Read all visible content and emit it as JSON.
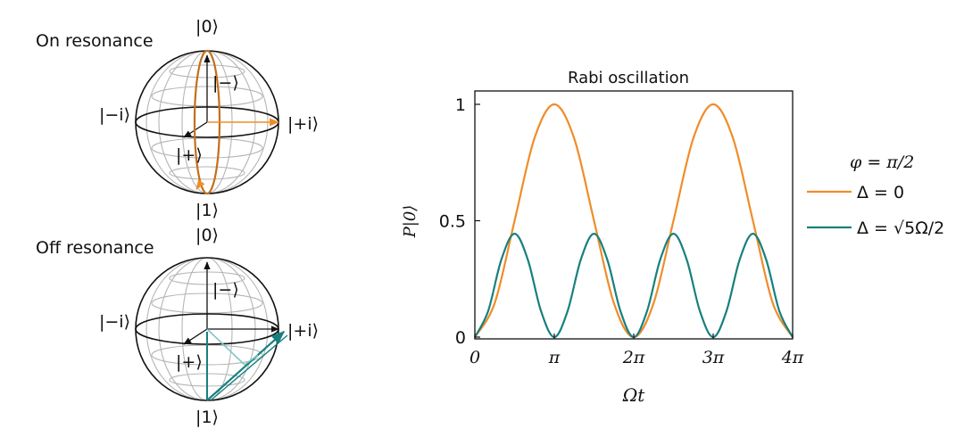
{
  "colors": {
    "on": "#ef8d2a",
    "off": "#17807e",
    "off_light": "#7cc8c6",
    "grid": "#b5b5b5",
    "axis": "#111111"
  },
  "spheres": [
    {
      "title": "On resonance",
      "title_color": "#ef8d2a",
      "kets": {
        "top": "|0⟩",
        "bottom": "|1⟩",
        "left": "|−i⟩",
        "right": "|+i⟩",
        "minus": "|−⟩",
        "plus": "|+⟩"
      }
    },
    {
      "title": "Off resonance",
      "title_color": "#17807e",
      "kets": {
        "top": "|0⟩",
        "bottom": "|1⟩",
        "left": "|−i⟩",
        "right": "|+i⟩",
        "minus": "|−⟩",
        "plus": "|+⟩"
      }
    }
  ],
  "chart_data": {
    "type": "line",
    "title": "Rabi oscillation",
    "xlabel": "Ωt",
    "ylabel": "P|0⟩",
    "xlim": [
      0,
      12.566
    ],
    "ylim": [
      0,
      1
    ],
    "xticks": [
      0,
      3.1416,
      6.2832,
      9.4248,
      12.566
    ],
    "xtick_labels": [
      "0",
      "π",
      "2π",
      "3π",
      "4π"
    ],
    "yticks": [
      0,
      0.5,
      1
    ],
    "ytick_labels": [
      "0",
      "0.5",
      "1"
    ],
    "legend_title": "φ = π/2",
    "legend_position": "right",
    "series": [
      {
        "name": "Δ = 0",
        "color": "#ef8d2a",
        "x": [
          0,
          0.785,
          1.571,
          2.356,
          3.142,
          3.927,
          4.712,
          5.498,
          6.283,
          7.069,
          7.854,
          8.639,
          9.425,
          10.21,
          10.996,
          11.781,
          12.566
        ],
        "y": [
          0,
          0.146,
          0.5,
          0.854,
          1,
          0.854,
          0.5,
          0.146,
          0,
          0.146,
          0.5,
          0.854,
          1,
          0.854,
          0.5,
          0.146,
          0
        ]
      },
      {
        "name": "Δ = √5Ω/2",
        "color": "#17807e",
        "x": [
          0,
          0.524,
          1.047,
          1.571,
          2.094,
          2.618,
          3.142,
          3.665,
          4.189,
          4.712,
          5.236,
          5.76,
          6.283,
          6.807,
          7.33,
          7.854,
          8.378,
          8.901,
          9.425,
          9.948,
          10.472,
          10.996,
          11.519,
          12.043,
          12.566
        ],
        "y": [
          0,
          0.111,
          0.333,
          0.444,
          0.333,
          0.111,
          0,
          0.111,
          0.333,
          0.444,
          0.333,
          0.111,
          0,
          0.111,
          0.333,
          0.444,
          0.333,
          0.111,
          0,
          0.111,
          0.333,
          0.444,
          0.333,
          0.111,
          0
        ]
      }
    ]
  }
}
